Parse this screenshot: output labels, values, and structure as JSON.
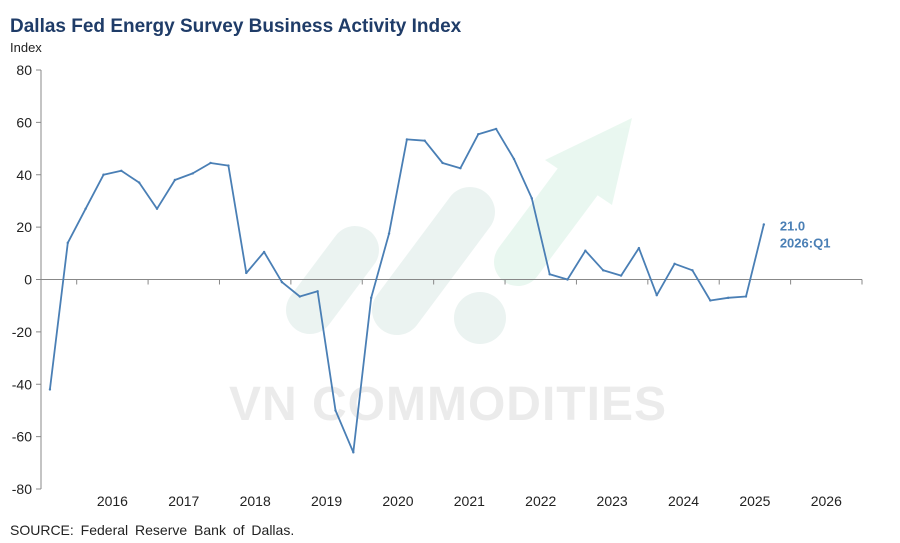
{
  "chart_data": {
    "type": "line",
    "title": "Dallas Fed Energy Survey Business Activity Index",
    "ylabel": "Index",
    "xlabel": "",
    "ylim": [
      -80,
      80
    ],
    "yticks": [
      80,
      60,
      40,
      20,
      0,
      -20,
      -40,
      -60,
      -80
    ],
    "xlim": [
      2015.5,
      2027.0
    ],
    "xtick_labels": [
      "2016",
      "2017",
      "2018",
      "2019",
      "2020",
      "2021",
      "2022",
      "2023",
      "2024",
      "2025",
      "2026"
    ],
    "grid": false,
    "line_color": "#4a7fb5",
    "series": [
      {
        "x": [
          2015.625,
          2015.875,
          2016.125,
          2016.375,
          2016.625,
          2016.875,
          2017.125,
          2017.375,
          2017.625,
          2017.875,
          2018.125,
          2018.375,
          2018.625,
          2018.875,
          2019.125,
          2019.375,
          2019.625,
          2019.875,
          2020.125,
          2020.375,
          2020.625,
          2020.875,
          2021.125,
          2021.375,
          2021.625,
          2021.875,
          2022.125,
          2022.375,
          2022.625,
          2022.875,
          2023.125,
          2023.375,
          2023.625,
          2023.875,
          2024.125,
          2024.375,
          2024.625,
          2024.875,
          2025.125,
          2025.375,
          2025.625
        ],
        "values": [
          -42,
          14,
          27,
          40,
          41.5,
          37,
          27,
          38,
          40.5,
          44.5,
          43.5,
          2.5,
          10.5,
          -1,
          -6.5,
          -4.5,
          -50,
          -66,
          -7,
          17.5,
          53.5,
          53,
          44.5,
          42.5,
          55.5,
          57.5,
          46,
          31,
          2,
          0,
          11,
          3.5,
          1.5,
          12,
          -6,
          6,
          3.5,
          -8,
          -7,
          -6.5,
          21.0
        ]
      }
    ],
    "annotation": {
      "value_label": "21.0",
      "period_label": "2026:Q1"
    }
  },
  "header": {
    "title": "Dallas Fed Energy Survey Business Activity Index",
    "axis_unit": "Index"
  },
  "footer": {
    "source": "SOURCE:  Federal Reserve  Bank  of  Dallas."
  },
  "watermark": {
    "text": "VN COMMODITIES"
  }
}
